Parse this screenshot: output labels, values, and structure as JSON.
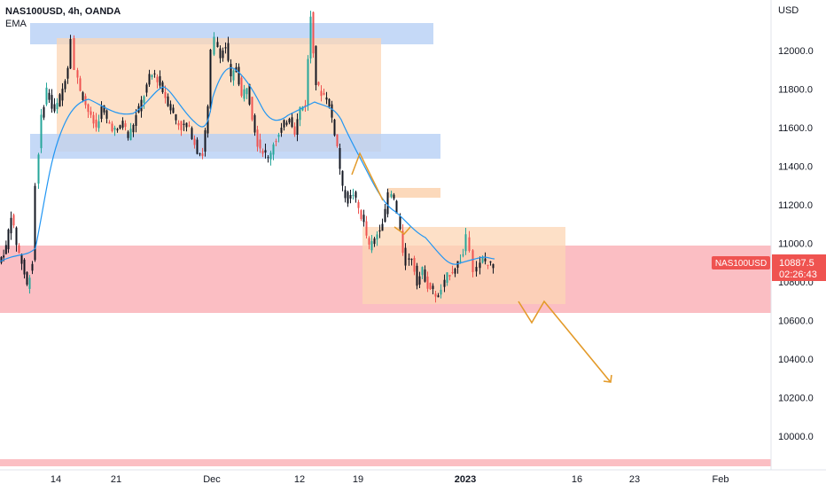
{
  "legend": {
    "symbol": "NAS100USD, 4h, OANDA",
    "indicator": "EMA"
  },
  "price_tag": {
    "symbol_label": "NAS100USD",
    "price": "10887.5",
    "countdown": "02:26:43"
  },
  "colors": {
    "up": "#26a69a",
    "down": "#ef5350",
    "candle_dark": "#131722",
    "ema": "#2196f3",
    "supply_zone": "#fcd5b4",
    "support_zone_blue": "#b7cff5",
    "demand_zone_red": "#fbb7bd",
    "projection": "#e39a29",
    "price_tag_bg": "#ef5350"
  },
  "chart_data": {
    "type": "candlestick",
    "y_axis_unit": "USD",
    "ylim": [
      9850,
      12240
    ],
    "y_ticks": [
      "12000.0",
      "11800.0",
      "11600.0",
      "11400.0",
      "11200.0",
      "11000.0",
      "10800.0",
      "10600.0",
      "10400.0",
      "10200.0",
      "10000.0"
    ],
    "x_ticks": [
      "14",
      "21",
      "Dec",
      "12",
      "19",
      "2023",
      "16",
      "23",
      "Feb"
    ],
    "last_price": 10887.5,
    "ohlc_anchors": [
      {
        "x": "Nov 10",
        "close": 10900
      },
      {
        "x": "Nov 11",
        "close": 11250
      },
      {
        "x": "Nov 13",
        "close": 11700
      },
      {
        "x": "Nov 15",
        "close": 12050
      },
      {
        "x": "Nov 16",
        "close": 11780
      },
      {
        "x": "Nov 18",
        "close": 11620
      },
      {
        "x": "Nov 21",
        "close": 11690
      },
      {
        "x": "Nov 23",
        "close": 11880
      },
      {
        "x": "Nov 25",
        "close": 11720
      },
      {
        "x": "Nov 29",
        "close": 11460
      },
      {
        "x": "Nov 30",
        "close": 11900
      },
      {
        "x": "Dec 1",
        "close": 12050
      },
      {
        "x": "Dec 2",
        "close": 11980
      },
      {
        "x": "Dec 5",
        "close": 11760
      },
      {
        "x": "Dec 7",
        "close": 11520
      },
      {
        "x": "Dec 8",
        "close": 11540
      },
      {
        "x": "Dec 9",
        "close": 11620
      },
      {
        "x": "Dec 12",
        "close": 11750
      },
      {
        "x": "Dec 13",
        "close": 12180
      },
      {
        "x": "Dec 14",
        "close": 11850
      },
      {
        "x": "Dec 16",
        "close": 11500
      },
      {
        "x": "Dec 19",
        "close": 11250
      },
      {
        "x": "Dec 21",
        "close": 10980
      },
      {
        "x": "Dec 22",
        "close": 11270
      },
      {
        "x": "Dec 23",
        "close": 10900
      },
      {
        "x": "Dec 27",
        "close": 10750
      },
      {
        "x": "Dec 28",
        "close": 10700
      },
      {
        "x": "Dec 30",
        "close": 10860
      },
      {
        "x": "Jan 2",
        "close": 11050
      },
      {
        "x": "Jan 3",
        "close": 10860
      },
      {
        "x": "Jan 5",
        "close": 10887.5
      }
    ],
    "ema_trend": [
      11020,
      11600,
      11760,
      11700,
      11800,
      11720,
      11700,
      11650,
      11900,
      11800,
      11700,
      11650,
      11700,
      11500,
      11250,
      11100,
      10900,
      10880
    ]
  }
}
